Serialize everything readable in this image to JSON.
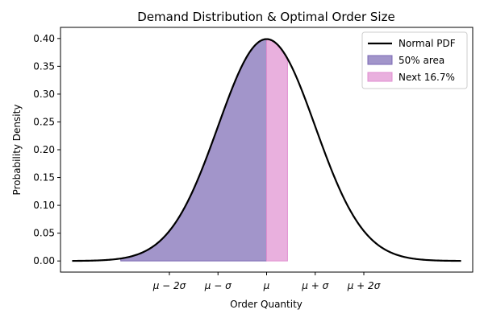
{
  "chart_data": {
    "type": "area",
    "title": "Demand Distribution & Optimal Order Size",
    "xlabel": "Order Quantity",
    "ylabel": "Probability Density",
    "xlim": [
      -4.24,
      4.24
    ],
    "ylim": [
      -0.02,
      0.42
    ],
    "x_ticks": [
      {
        "value": -2,
        "label": "μ − 2σ"
      },
      {
        "value": -1,
        "label": "μ − σ"
      },
      {
        "value": 0,
        "label": "μ"
      },
      {
        "value": 1,
        "label": "μ + σ"
      },
      {
        "value": 2,
        "label": "μ + 2σ"
      }
    ],
    "y_ticks": [
      "0.00",
      "0.05",
      "0.10",
      "0.15",
      "0.20",
      "0.25",
      "0.30",
      "0.35",
      "0.40"
    ],
    "curve": {
      "name": "Normal PDF",
      "distribution": "standard normal",
      "x_range": [
        -4,
        4
      ],
      "color": "#000000"
    },
    "shaded_regions": [
      {
        "name": "50% area",
        "x_from": -3,
        "x_to": 0,
        "color": "#7b68b4"
      },
      {
        "name": "Next 16.7%",
        "x_from": 0,
        "x_to": 0.43,
        "color": "#e08ed0"
      }
    ],
    "legend_position": "top-right",
    "grid": false
  }
}
